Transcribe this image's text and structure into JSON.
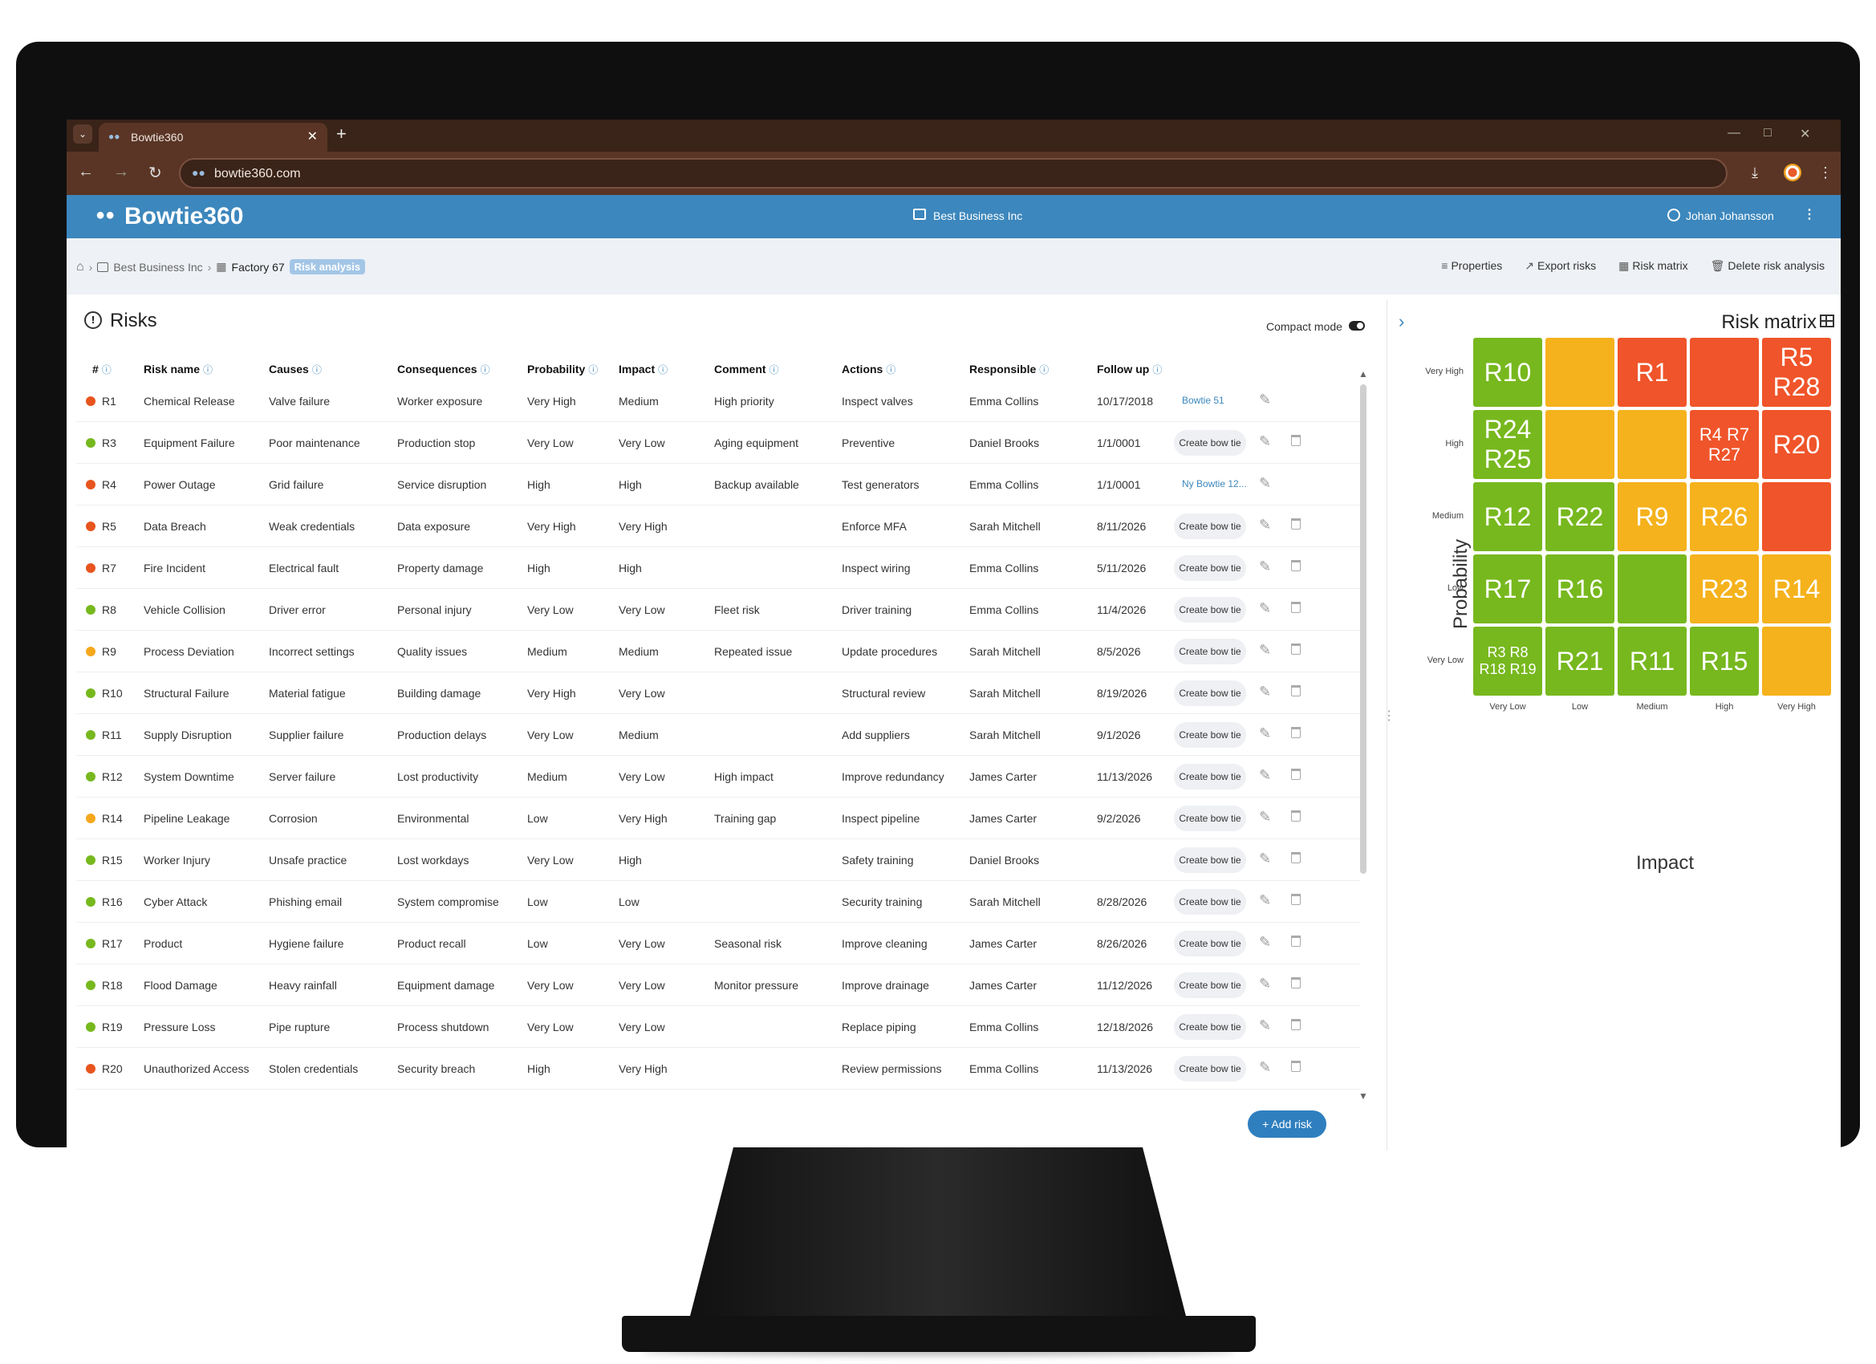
{
  "browser": {
    "tab_title": "Bowtie360",
    "url": "bowtie360.com"
  },
  "app": {
    "logo": "Bowtie360",
    "organization": "Best Business Inc",
    "user": "Johan Johansson"
  },
  "breadcrumb": {
    "org": "Best Business Inc",
    "factory": "Factory 67",
    "active": "Risk analysis"
  },
  "toolbar": {
    "properties": "Properties",
    "export": "Export risks",
    "matrix": "Risk matrix",
    "delete": "Delete risk analysis"
  },
  "risks": {
    "title": "Risks",
    "compact_mode": "Compact mode",
    "add_risk": "Add risk",
    "headers": [
      "#",
      "Risk name",
      "Causes",
      "Consequences",
      "Probability",
      "Impact",
      "Comment",
      "Actions",
      "Responsible",
      "Follow up"
    ],
    "create_label": "Create bow tie",
    "rows": [
      {
        "id": "R1",
        "color": "#e8541e",
        "name": "Chemical Release",
        "causes": "Valve failure",
        "cons": "Worker exposure",
        "prob": "Very High",
        "imp": "Medium",
        "com": "High priority",
        "act": "Inspect valves",
        "resp": "Emma Collins",
        "fol": "10/17/2018",
        "bowtie": "Bowtie 51"
      },
      {
        "id": "R3",
        "color": "#77b81e",
        "name": "Equipment Failure",
        "causes": "Poor maintenance",
        "cons": "Production stop",
        "prob": "Very Low",
        "imp": "Very Low",
        "com": "Aging equipment",
        "act": "Preventive",
        "resp": "Daniel Brooks",
        "fol": "1/1/0001",
        "bowtie": ""
      },
      {
        "id": "R4",
        "color": "#e8541e",
        "name": "Power Outage",
        "causes": "Grid failure",
        "cons": "Service disruption",
        "prob": "High",
        "imp": "High",
        "com": "Backup available",
        "act": "Test generators",
        "resp": "Emma Collins",
        "fol": "1/1/0001",
        "bowtie": "Ny Bowtie 12..."
      },
      {
        "id": "R5",
        "color": "#e8541e",
        "name": "Data Breach",
        "causes": "Weak credentials",
        "cons": "Data exposure",
        "prob": "Very High",
        "imp": "Very High",
        "com": "",
        "act": "Enforce MFA",
        "resp": "Sarah Mitchell",
        "fol": "8/11/2026",
        "bowtie": ""
      },
      {
        "id": "R7",
        "color": "#e8541e",
        "name": "Fire Incident",
        "causes": "Electrical fault",
        "cons": "Property damage",
        "prob": "High",
        "imp": "High",
        "com": "",
        "act": "Inspect wiring",
        "resp": "Emma Collins",
        "fol": "5/11/2026",
        "bowtie": ""
      },
      {
        "id": "R8",
        "color": "#77b81e",
        "name": "Vehicle Collision",
        "causes": "Driver error",
        "cons": "Personal injury",
        "prob": "Very Low",
        "imp": "Very Low",
        "com": "Fleet risk",
        "act": "Driver training",
        "resp": "Emma Collins",
        "fol": "11/4/2026",
        "bowtie": ""
      },
      {
        "id": "R9",
        "color": "#f5a81c",
        "name": "Process Deviation",
        "causes": "Incorrect settings",
        "cons": "Quality issues",
        "prob": "Medium",
        "imp": "Medium",
        "com": "Repeated issue",
        "act": "Update procedures",
        "resp": "Sarah Mitchell",
        "fol": "8/5/2026",
        "bowtie": ""
      },
      {
        "id": "R10",
        "color": "#77b81e",
        "name": "Structural Failure",
        "causes": "Material fatigue",
        "cons": "Building damage",
        "prob": "Very High",
        "imp": "Very Low",
        "com": "",
        "act": "Structural review",
        "resp": "Sarah Mitchell",
        "fol": "8/19/2026",
        "bowtie": ""
      },
      {
        "id": "R11",
        "color": "#77b81e",
        "name": "Supply Disruption",
        "causes": "Supplier failure",
        "cons": "Production delays",
        "prob": "Very Low",
        "imp": "Medium",
        "com": "",
        "act": "Add suppliers",
        "resp": "Sarah Mitchell",
        "fol": "9/1/2026",
        "bowtie": ""
      },
      {
        "id": "R12",
        "color": "#77b81e",
        "name": "System Downtime",
        "causes": "Server failure",
        "cons": "Lost productivity",
        "prob": "Medium",
        "imp": "Very Low",
        "com": "High impact",
        "act": "Improve redundancy",
        "resp": "James Carter",
        "fol": "11/13/2026",
        "bowtie": ""
      },
      {
        "id": "R14",
        "color": "#f5a81c",
        "name": "Pipeline Leakage",
        "causes": "Corrosion",
        "cons": "Environmental",
        "prob": "Low",
        "imp": "Very High",
        "com": "Training gap",
        "act": "Inspect pipeline",
        "resp": "James Carter",
        "fol": "9/2/2026",
        "bowtie": ""
      },
      {
        "id": "R15",
        "color": "#77b81e",
        "name": "Worker Injury",
        "causes": "Unsafe practice",
        "cons": "Lost workdays",
        "prob": "Very Low",
        "imp": "High",
        "com": "",
        "act": "Safety training",
        "resp": "Daniel Brooks",
        "fol": "",
        "bowtie": ""
      },
      {
        "id": "R16",
        "color": "#77b81e",
        "name": "Cyber Attack",
        "causes": "Phishing email",
        "cons": "System compromise",
        "prob": "Low",
        "imp": "Low",
        "com": "",
        "act": "Security training",
        "resp": "Sarah Mitchell",
        "fol": "8/28/2026",
        "bowtie": ""
      },
      {
        "id": "R17",
        "color": "#77b81e",
        "name": "Product",
        "causes": "Hygiene failure",
        "cons": "Product recall",
        "prob": "Low",
        "imp": "Very Low",
        "com": "Seasonal risk",
        "act": "Improve cleaning",
        "resp": "James Carter",
        "fol": "8/26/2026",
        "bowtie": ""
      },
      {
        "id": "R18",
        "color": "#77b81e",
        "name": "Flood Damage",
        "causes": "Heavy rainfall",
        "cons": "Equipment damage",
        "prob": "Very Low",
        "imp": "Very Low",
        "com": "Monitor pressure",
        "act": "Improve drainage",
        "resp": "James Carter",
        "fol": "11/12/2026",
        "bowtie": ""
      },
      {
        "id": "R19",
        "color": "#77b81e",
        "name": "Pressure Loss",
        "causes": "Pipe rupture",
        "cons": "Process shutdown",
        "prob": "Very Low",
        "imp": "Very Low",
        "com": "",
        "act": "Replace piping",
        "resp": "Emma Collins",
        "fol": "12/18/2026",
        "bowtie": ""
      },
      {
        "id": "R20",
        "color": "#e8541e",
        "name": "Unauthorized Access",
        "causes": "Stolen credentials",
        "cons": "Security breach",
        "prob": "High",
        "imp": "Very High",
        "com": "",
        "act": "Review permissions",
        "resp": "Emma Collins",
        "fol": "11/13/2026",
        "bowtie": ""
      }
    ]
  },
  "matrix": {
    "title": "Risk matrix",
    "y_axis": "Probability",
    "x_axis": "Impact",
    "y_levels": [
      "Very High",
      "High",
      "Medium",
      "Low",
      "Very Low"
    ],
    "x_levels": [
      "Very Low",
      "Low",
      "Medium",
      "High",
      "Very High"
    ],
    "colors": {
      "green": "#77b81e",
      "yellow": "#f5b21c",
      "red": "#f0542a"
    },
    "cells": [
      [
        {
          "c": "green",
          "t": "R10"
        },
        {
          "c": "yellow",
          "t": ""
        },
        {
          "c": "red",
          "t": "R1"
        },
        {
          "c": "red",
          "t": ""
        },
        {
          "c": "red",
          "t": "R5 R28"
        }
      ],
      [
        {
          "c": "green",
          "t": "R24 R25"
        },
        {
          "c": "yellow",
          "t": ""
        },
        {
          "c": "yellow",
          "t": ""
        },
        {
          "c": "red",
          "t": "R4 R7 R27"
        },
        {
          "c": "red",
          "t": "R20"
        }
      ],
      [
        {
          "c": "green",
          "t": "R12"
        },
        {
          "c": "green",
          "t": "R22"
        },
        {
          "c": "yellow",
          "t": "R9"
        },
        {
          "c": "yellow",
          "t": "R26"
        },
        {
          "c": "red",
          "t": ""
        }
      ],
      [
        {
          "c": "green",
          "t": "R17"
        },
        {
          "c": "green",
          "t": "R16"
        },
        {
          "c": "green",
          "t": ""
        },
        {
          "c": "yellow",
          "t": "R23"
        },
        {
          "c": "yellow",
          "t": "R14"
        }
      ],
      [
        {
          "c": "green",
          "t": "R3 R8 R18 R19"
        },
        {
          "c": "green",
          "t": "R21"
        },
        {
          "c": "green",
          "t": "R11"
        },
        {
          "c": "green",
          "t": "R15"
        },
        {
          "c": "yellow",
          "t": ""
        }
      ]
    ]
  }
}
